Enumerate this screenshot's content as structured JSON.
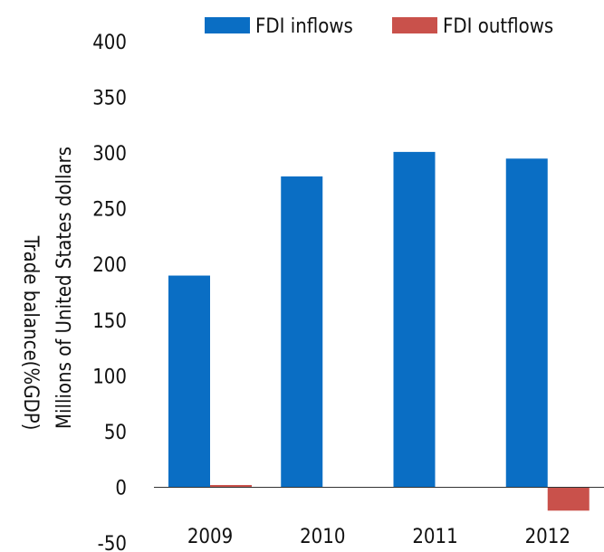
{
  "chart_data": {
    "type": "bar",
    "categories": [
      "2009",
      "2010",
      "2011",
      "2012"
    ],
    "series": [
      {
        "name": "FDI inflows",
        "color": "#0a6ec4",
        "values": [
          190,
          279,
          301,
          295
        ]
      },
      {
        "name": "FDI outflows",
        "color": "#c9514b",
        "values": [
          2,
          0,
          0,
          -21
        ]
      }
    ],
    "ylabels": [
      "Millions of United States dollars",
      "Trade balance(%GDP)"
    ],
    "yticks": [
      -50,
      0,
      50,
      100,
      150,
      200,
      250,
      300,
      350,
      400
    ],
    "ylim": [
      -50,
      400
    ],
    "legend_position": "top-right",
    "grid": false
  }
}
